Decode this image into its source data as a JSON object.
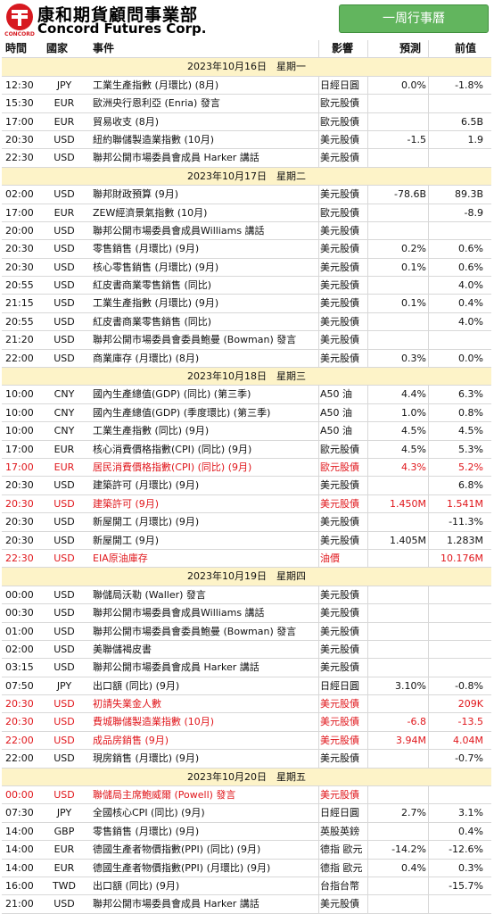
{
  "header": {
    "logo_mark": "CONCORD",
    "company_zh": "康和期貨顧問事業部",
    "company_en": "Concord Futures Corp.",
    "button": "一周行事曆"
  },
  "columns": [
    "時間",
    "國家",
    "事件",
    "影響",
    "預測",
    "前值"
  ],
  "days": [
    {
      "date": "2023年10月16日　星期一",
      "rows": [
        {
          "time": "12:30",
          "country": "JPY",
          "event": "工業生產指數 (月環比) (8月)",
          "impact": "日經日圓",
          "forecast": "0.0%",
          "previous": "-1.8%"
        },
        {
          "time": "15:30",
          "country": "EUR",
          "event": "歐洲央行恩利亞 (Enria) 發言",
          "impact": "歐元股債"
        },
        {
          "time": "17:00",
          "country": "EUR",
          "event": "貿易收支 (8月)",
          "impact": "歐元股債",
          "previous": "6.5B"
        },
        {
          "time": "20:30",
          "country": "USD",
          "event": "紐約聯儲製造業指數 (10月)",
          "impact": "美元股債",
          "forecast": "-1.5",
          "previous": "1.9"
        },
        {
          "time": "22:30",
          "country": "USD",
          "event": "聯邦公開市場委員會成員 Harker 講話",
          "impact": "美元股債"
        }
      ]
    },
    {
      "date": "2023年10月17日　星期二",
      "rows": [
        {
          "time": "02:00",
          "country": "USD",
          "event": "聯邦財政預算 (9月)",
          "impact": "美元股債",
          "forecast": "-78.6B",
          "previous": "89.3B"
        },
        {
          "time": "17:00",
          "country": "EUR",
          "event": "ZEW經濟景氣指數 (10月)",
          "impact": "歐元股債",
          "previous": "-8.9"
        },
        {
          "time": "20:00",
          "country": "USD",
          "event": "聯邦公開市場委員會成員Williams 講話",
          "impact": "美元股債"
        },
        {
          "time": "20:30",
          "country": "USD",
          "event": "零售銷售 (月環比) (9月)",
          "impact": "美元股債",
          "forecast": "0.2%",
          "previous": "0.6%"
        },
        {
          "time": "20:30",
          "country": "USD",
          "event": "核心零售銷售 (月環比) (9月)",
          "impact": "美元股債",
          "forecast": "0.1%",
          "previous": "0.6%"
        },
        {
          "time": "20:55",
          "country": "USD",
          "event": "紅皮書商業零售銷售 (同比)",
          "impact": "美元股債",
          "previous": "4.0%"
        },
        {
          "time": "21:15",
          "country": "USD",
          "event": "工業生產指數 (月環比) (9月)",
          "impact": "美元股債",
          "forecast": "0.1%",
          "previous": "0.4%"
        },
        {
          "time": "20:55",
          "country": "USD",
          "event": "紅皮書商業零售銷售 (同比)",
          "impact": "美元股債",
          "previous": "4.0%"
        },
        {
          "time": "21:20",
          "country": "USD",
          "event": "聯邦公開市場委員會委員鮑曼 (Bowman) 發言",
          "impact": "美元股債"
        },
        {
          "time": "22:00",
          "country": "USD",
          "event": "商業庫存 (月環比) (8月)",
          "impact": "美元股債",
          "forecast": "0.3%",
          "previous": "0.0%"
        }
      ]
    },
    {
      "date": "2023年10月18日　星期三",
      "rows": [
        {
          "time": "10:00",
          "country": "CNY",
          "event": "國內生產總值(GDP) (同比) (第三季)",
          "impact": "A50 油",
          "forecast": "4.4%",
          "previous": "6.3%"
        },
        {
          "time": "10:00",
          "country": "CNY",
          "event": "國內生產總值(GDP) (季度環比) (第三季)",
          "impact": "A50 油",
          "forecast": "1.0%",
          "previous": "0.8%"
        },
        {
          "time": "10:00",
          "country": "CNY",
          "event": "工業生產指數 (同比) (9月)",
          "impact": "A50 油",
          "forecast": "4.5%",
          "previous": "4.5%"
        },
        {
          "time": "17:00",
          "country": "EUR",
          "event": "核心消費價格指數(CPI) (同比) (9月)",
          "impact": "歐元股債",
          "forecast": "4.5%",
          "previous": "5.3%"
        },
        {
          "time": "17:00",
          "country": "EUR",
          "event": "居民消費價格指數(CPI) (同比) (9月)",
          "impact": "歐元股債",
          "forecast": "4.3%",
          "previous": "5.2%",
          "highlight": true
        },
        {
          "time": "20:30",
          "country": "USD",
          "event": "建築許可 (月環比) (9月)",
          "impact": "美元股債",
          "previous": "6.8%"
        },
        {
          "time": "20:30",
          "country": "USD",
          "event": "建築許可 (9月)",
          "impact": "美元股債",
          "forecast": "1.450M",
          "previous": "1.541M",
          "highlight": true
        },
        {
          "time": "20:30",
          "country": "USD",
          "event": "新屋開工 (月環比) (9月)",
          "impact": "美元股債",
          "previous": "-11.3%"
        },
        {
          "time": "20:30",
          "country": "USD",
          "event": "新屋開工 (9月)",
          "impact": "美元股債",
          "forecast": "1.405M",
          "previous": "1.283M"
        },
        {
          "time": "22:30",
          "country": "USD",
          "event": "EIA原油庫存",
          "impact": "油價",
          "previous": "10.176M",
          "highlight": true
        }
      ]
    },
    {
      "date": "2023年10月19日　星期四",
      "rows": [
        {
          "time": "00:00",
          "country": "USD",
          "event": "聯儲局沃勒 (Waller) 發言",
          "impact": "美元股債"
        },
        {
          "time": "00:30",
          "country": "USD",
          "event": "聯邦公開市場委員會成員Williams 講話",
          "impact": "美元股債"
        },
        {
          "time": "01:00",
          "country": "USD",
          "event": "聯邦公開市場委員會委員鮑曼 (Bowman) 發言",
          "impact": "美元股債"
        },
        {
          "time": "02:00",
          "country": "USD",
          "event": "美聯儲褐皮書",
          "impact": "美元股債"
        },
        {
          "time": "03:15",
          "country": "USD",
          "event": "聯邦公開市場委員會成員 Harker 講話",
          "impact": "美元股債"
        },
        {
          "time": "07:50",
          "country": "JPY",
          "event": "出口額 (同比) (9月)",
          "impact": "日經日圓",
          "forecast": "3.10%",
          "previous": "-0.8%"
        },
        {
          "time": "20:30",
          "country": "USD",
          "event": "初請失業金人數",
          "impact": "美元股債",
          "previous": "209K",
          "highlight": true
        },
        {
          "time": "20:30",
          "country": "USD",
          "event": "費城聯儲製造業指數 (10月)",
          "impact": "美元股債",
          "forecast": "-6.8",
          "previous": "-13.5",
          "highlight": true
        },
        {
          "time": "22:00",
          "country": "USD",
          "event": "成品房銷售 (9月)",
          "impact": "美元股債",
          "forecast": "3.94M",
          "previous": "4.04M",
          "highlight": true
        },
        {
          "time": "22:00",
          "country": "USD",
          "event": "現房銷售 (月環比) (9月)",
          "impact": "美元股債",
          "previous": "-0.7%"
        }
      ]
    },
    {
      "date": "2023年10月20日　星期五",
      "rows": [
        {
          "time": "00:00",
          "country": "USD",
          "event": "聯儲局主席鮑威爾 (Powell) 發言",
          "impact": "美元股債",
          "highlight": true
        },
        {
          "time": "07:30",
          "country": "JPY",
          "event": "全國核心CPI (同比) (9月)",
          "impact": "日經日圓",
          "forecast": "2.7%",
          "previous": "3.1%"
        },
        {
          "time": "14:00",
          "country": "GBP",
          "event": "零售銷售 (月環比) (9月)",
          "impact": "英股英鎊",
          "previous": "0.4%"
        },
        {
          "time": "14:00",
          "country": "EUR",
          "event": "德國生產者物價指數(PPI) (同比) (9月)",
          "impact": "德指 歐元",
          "forecast": "-14.2%",
          "previous": "-12.6%"
        },
        {
          "time": "14:00",
          "country": "EUR",
          "event": "德國生產者物價指數(PPI) (月環比) (9月)",
          "impact": "德指 歐元",
          "forecast": "0.4%",
          "previous": "0.3%"
        },
        {
          "time": "16:00",
          "country": "TWD",
          "event": "出口額 (同比) (9月)",
          "impact": "台指台幣",
          "previous": "-15.7%"
        },
        {
          "time": "21:00",
          "country": "USD",
          "event": "聯邦公開市場委員會成員 Harker 講話",
          "impact": "美元股債"
        }
      ]
    }
  ]
}
